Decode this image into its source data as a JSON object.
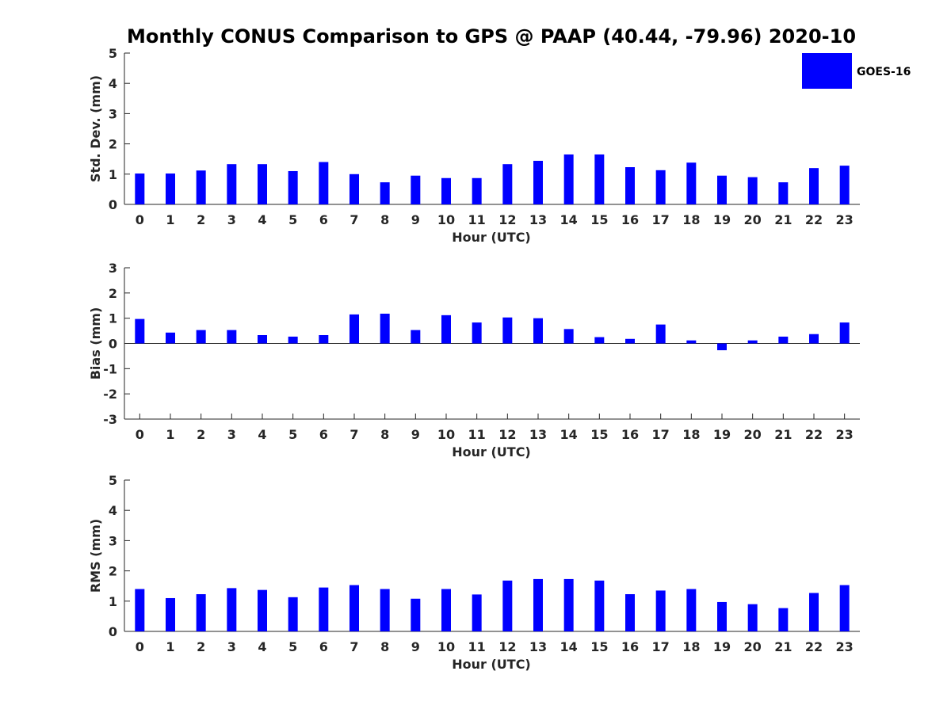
{
  "chart_data": {
    "title": "Monthly CONUS Comparison to GPS @ PAAP (40.44, -79.96) 2020-10",
    "legend": {
      "label": "GOES-16",
      "color": "#0000ff",
      "placement": "top-right"
    },
    "panels": [
      {
        "type": "bar",
        "name": "std-dev",
        "ylabel": "Std. Dev. (mm)",
        "xlabel": "Hour (UTC)",
        "ylim": [
          0,
          5
        ],
        "yticks": [
          0,
          1,
          2,
          3,
          4,
          5
        ],
        "categories": [
          "0",
          "1",
          "2",
          "3",
          "4",
          "5",
          "6",
          "7",
          "8",
          "9",
          "10",
          "11",
          "12",
          "13",
          "14",
          "15",
          "16",
          "17",
          "18",
          "19",
          "20",
          "21",
          "22",
          "23"
        ],
        "series": [
          {
            "name": "GOES-16",
            "values": [
              1.02,
              1.02,
              1.12,
              1.33,
              1.33,
              1.1,
              1.4,
              1.0,
              0.73,
              0.95,
              0.87,
              0.87,
              1.33,
              1.44,
              1.65,
              1.65,
              1.23,
              1.13,
              1.38,
              0.95,
              0.9,
              0.73,
              1.2,
              1.28
            ]
          }
        ]
      },
      {
        "type": "bar",
        "name": "bias",
        "ylabel": "Bias (mm)",
        "xlabel": "Hour (UTC)",
        "ylim": [
          -3,
          3
        ],
        "yticks": [
          -3,
          -2,
          -1,
          0,
          1,
          2,
          3
        ],
        "categories": [
          "0",
          "1",
          "2",
          "3",
          "4",
          "5",
          "6",
          "7",
          "8",
          "9",
          "10",
          "11",
          "12",
          "13",
          "14",
          "15",
          "16",
          "17",
          "18",
          "19",
          "20",
          "21",
          "22",
          "23"
        ],
        "series": [
          {
            "name": "GOES-16",
            "values": [
              0.97,
              0.43,
              0.53,
              0.53,
              0.33,
              0.27,
              0.33,
              1.15,
              1.18,
              0.53,
              1.12,
              0.83,
              1.03,
              1.0,
              0.57,
              0.25,
              0.18,
              0.75,
              0.12,
              -0.27,
              0.12,
              0.27,
              0.37,
              0.83
            ]
          }
        ]
      },
      {
        "type": "bar",
        "name": "rms",
        "ylabel": "RMS (mm)",
        "xlabel": "Hour (UTC)",
        "ylim": [
          0,
          5
        ],
        "yticks": [
          0,
          1,
          2,
          3,
          4,
          5
        ],
        "categories": [
          "0",
          "1",
          "2",
          "3",
          "4",
          "5",
          "6",
          "7",
          "8",
          "9",
          "10",
          "11",
          "12",
          "13",
          "14",
          "15",
          "16",
          "17",
          "18",
          "19",
          "20",
          "21",
          "22",
          "23"
        ],
        "series": [
          {
            "name": "GOES-16",
            "values": [
              1.4,
              1.1,
              1.23,
              1.43,
              1.37,
              1.13,
              1.45,
              1.53,
              1.4,
              1.08,
              1.4,
              1.22,
              1.68,
              1.73,
              1.73,
              1.68,
              1.23,
              1.35,
              1.4,
              0.97,
              0.9,
              0.77,
              1.27,
              1.53
            ]
          }
        ]
      }
    ]
  }
}
